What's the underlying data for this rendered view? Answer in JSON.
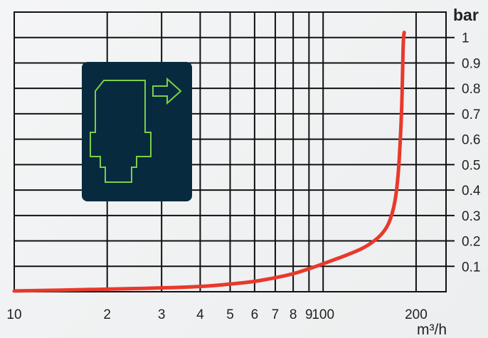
{
  "chart_data": {
    "type": "line",
    "title": "",
    "xlabel": "m³/h",
    "ylabel": "bar",
    "x_scale": "log",
    "xlim": [
      10,
      250
    ],
    "ylim": [
      0,
      1.1
    ],
    "x_ticks": [
      {
        "value": 10,
        "label": "10"
      },
      {
        "value": 20,
        "label": "2"
      },
      {
        "value": 30,
        "label": "3"
      },
      {
        "value": 40,
        "label": "4"
      },
      {
        "value": 50,
        "label": "5"
      },
      {
        "value": 60,
        "label": "6"
      },
      {
        "value": 70,
        "label": "7"
      },
      {
        "value": 80,
        "label": "8"
      },
      {
        "value": 90,
        "label": "9"
      },
      {
        "value": 100,
        "label": "100"
      },
      {
        "value": 200,
        "label": "200"
      }
    ],
    "y_ticks": [
      {
        "value": 0.1,
        "label": "0.1"
      },
      {
        "value": 0.2,
        "label": "0.2"
      },
      {
        "value": 0.3,
        "label": "0.3"
      },
      {
        "value": 0.4,
        "label": "0.4"
      },
      {
        "value": 0.5,
        "label": "0.5"
      },
      {
        "value": 0.6,
        "label": "0.6"
      },
      {
        "value": 0.7,
        "label": "0.7"
      },
      {
        "value": 0.8,
        "label": "0.8"
      },
      {
        "value": 0.9,
        "label": "0.9"
      },
      {
        "value": 1.0,
        "label": "1"
      }
    ],
    "grid": true,
    "series": [
      {
        "color": "#e8392c",
        "points": [
          [
            10,
            0.003
          ],
          [
            20,
            0.01
          ],
          [
            30,
            0.015
          ],
          [
            40,
            0.02
          ],
          [
            50,
            0.03
          ],
          [
            60,
            0.04
          ],
          [
            70,
            0.055
          ],
          [
            80,
            0.07
          ],
          [
            90,
            0.09
          ],
          [
            100,
            0.11
          ],
          [
            120,
            0.145
          ],
          [
            140,
            0.18
          ],
          [
            160,
            0.24
          ],
          [
            170,
            0.33
          ],
          [
            175,
            0.45
          ],
          [
            178,
            0.6
          ],
          [
            180,
            0.75
          ],
          [
            181,
            0.9
          ],
          [
            182,
            1.0
          ],
          [
            183,
            1.02
          ]
        ]
      }
    ],
    "legend": "none"
  },
  "inset": {
    "icon": "valve-outline-icon",
    "background_color": "#082a3f",
    "icon_color": "#7ccf48"
  }
}
